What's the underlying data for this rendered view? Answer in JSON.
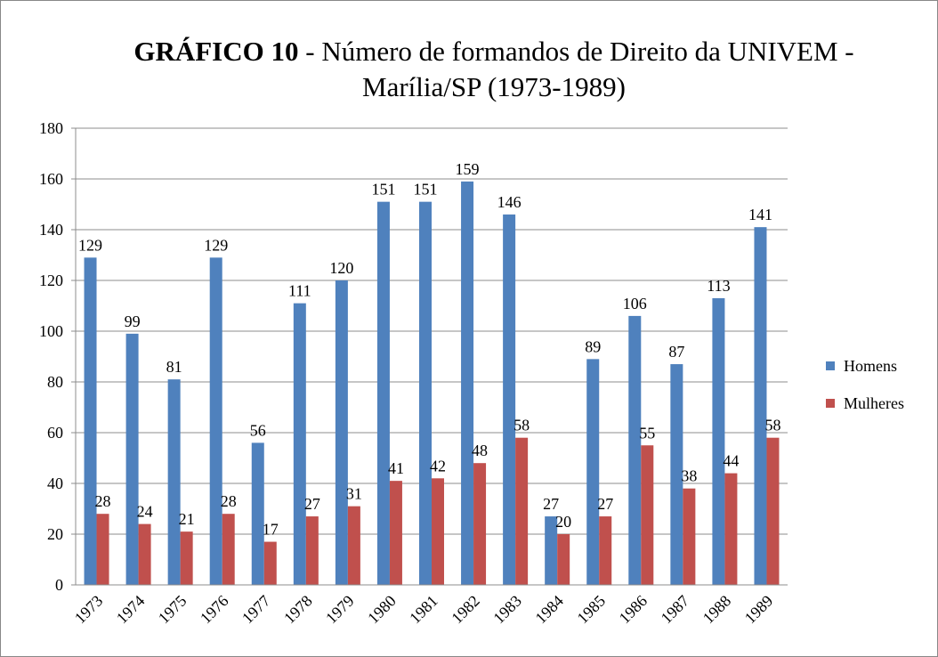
{
  "chart_data": {
    "type": "bar",
    "title_label": "GRÁFICO 10",
    "title": "- Número de formandos de Direito da UNIVEM - Marília/SP (1973-1989)",
    "categories": [
      "1973",
      "1974",
      "1975",
      "1976",
      "1977",
      "1978",
      "1979",
      "1980",
      "1981",
      "1982",
      "1983",
      "1984",
      "1985",
      "1986",
      "1987",
      "1988",
      "1989"
    ],
    "series": [
      {
        "name": "Homens",
        "color": "#4f81bd",
        "values": [
          129,
          99,
          81,
          129,
          56,
          111,
          120,
          151,
          151,
          159,
          146,
          27,
          89,
          106,
          87,
          113,
          141
        ]
      },
      {
        "name": "Mulheres",
        "color": "#c0504d",
        "values": [
          28,
          24,
          21,
          28,
          17,
          27,
          31,
          41,
          42,
          48,
          58,
          20,
          27,
          55,
          38,
          44,
          58
        ]
      }
    ],
    "ylim": [
      0,
      180
    ],
    "yticks": [
      0,
      20,
      40,
      60,
      80,
      100,
      120,
      140,
      160,
      180
    ],
    "grid": true,
    "legend": "right"
  }
}
